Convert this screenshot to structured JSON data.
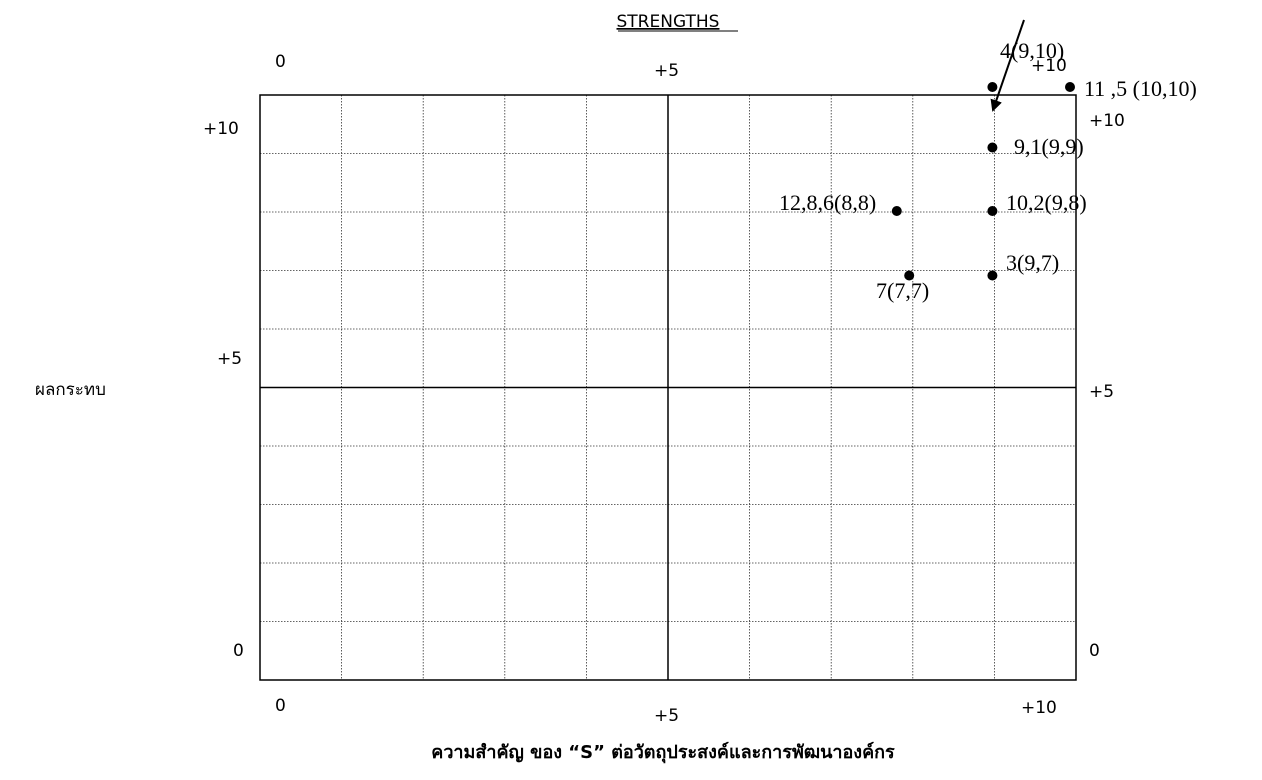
{
  "chart_data": {
    "type": "scatter",
    "title": "STRENGTHS",
    "xlabel": "ความสำคัญ ของ “S” ต่อวัตถุประสงค์และการพัฒนาองค์กร",
    "ylabel": "ผลกระทบ",
    "xlim": [
      0,
      10
    ],
    "ylim": [
      0,
      10
    ],
    "grid": true,
    "tick_labels": {
      "top": [
        "0",
        "+5",
        "+10"
      ],
      "bottom": [
        "0",
        "+5",
        "+10"
      ],
      "left": [
        "+10",
        "+5",
        "0"
      ],
      "right": [
        "+10",
        "+5",
        "0"
      ]
    },
    "points": [
      {
        "label": "4(9,10)",
        "x": 9,
        "y": 10
      },
      {
        "label": "11 ,5 (10,10)",
        "x": 10,
        "y": 10
      },
      {
        "label": "9,1(9,9)",
        "x": 9,
        "y": 9
      },
      {
        "label": "12,8,6(8,8)",
        "x": 8,
        "y": 8
      },
      {
        "label": "10,2(9,8)",
        "x": 9,
        "y": 8
      },
      {
        "label": "7(7,7)",
        "x": 7,
        "y": 7
      },
      {
        "label": "3(9,7)",
        "x": 9,
        "y": 7
      }
    ]
  }
}
